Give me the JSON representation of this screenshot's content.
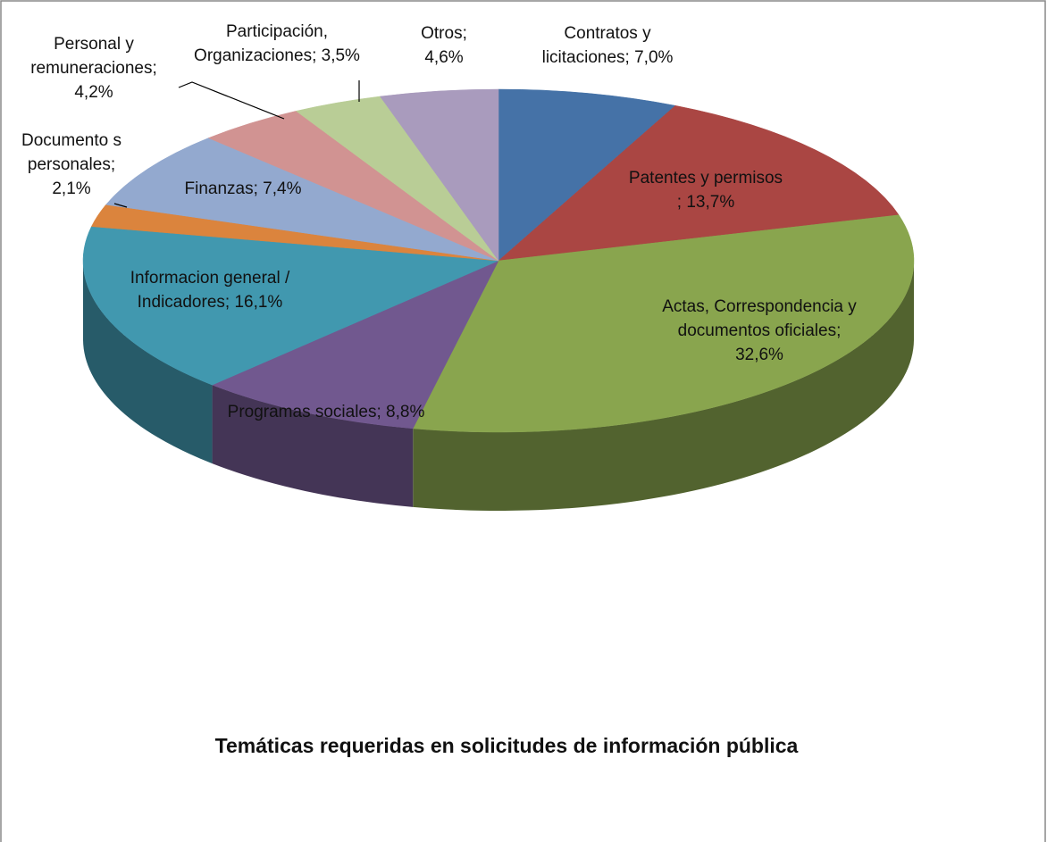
{
  "chart_data": {
    "type": "pie3d",
    "title": "Temáticas requeridas en solicitudes de información pública",
    "categories": [
      "Contratos y licitaciones;",
      "Patentes y permisos ;",
      "Actas, Correspondencia y documentos oficiales;",
      "Programas sociales;",
      "Informacion general / Indicadores;",
      "Documento s personales;",
      "Finanzas;",
      "Personal y remuneraciones;",
      "Participación, Organizaciones;",
      "Otros;"
    ],
    "values": [
      7.0,
      13.7,
      32.6,
      8.8,
      16.1,
      2.1,
      7.4,
      4.2,
      3.5,
      4.6
    ],
    "value_labels": [
      "7,0%",
      "13,7%",
      "32,6%",
      "8,8%",
      "16,1%",
      "2,1%",
      "7,4%",
      "4,2%",
      "3,5%",
      "4,6%"
    ],
    "colors": [
      "#4572a7",
      "#aa4643",
      "#89a54e",
      "#71588f",
      "#4198af",
      "#db843d",
      "#93a9cf",
      "#d19392",
      "#b9cd96",
      "#a99bbd"
    ]
  }
}
